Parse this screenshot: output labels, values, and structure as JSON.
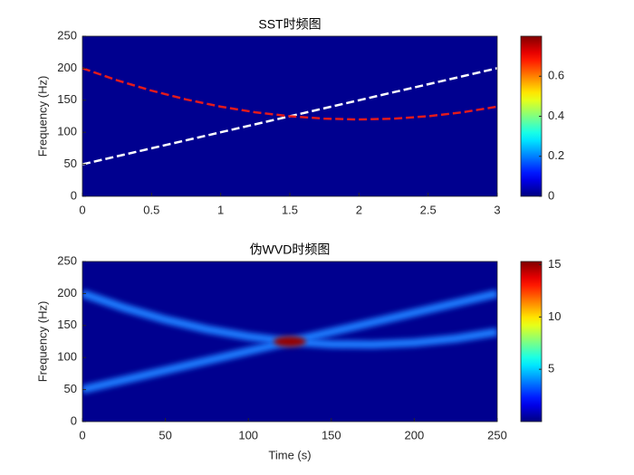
{
  "chart_data": [
    {
      "type": "ridge",
      "title": "SST时频图",
      "ylabel": "Frequency (Hz)",
      "background": "#00008f",
      "x": [
        0,
        0.25,
        0.5,
        0.75,
        1,
        1.25,
        1.5,
        1.75,
        2,
        2.25,
        2.5,
        2.75,
        3
      ],
      "series": [
        {
          "color": "#ffffff",
          "values": [
            50,
            62.5,
            75,
            87.5,
            100,
            112.5,
            125,
            137.5,
            150,
            162.5,
            175,
            187.5,
            200
          ]
        },
        {
          "color": "#e31a1c",
          "values": [
            200,
            181.25,
            165,
            151.25,
            140,
            131.25,
            125,
            121.25,
            120,
            121.25,
            125,
            131.25,
            140
          ]
        }
      ],
      "xlim": [
        0,
        3
      ],
      "xticks": [
        0,
        0.5,
        1,
        1.5,
        2,
        2.5,
        3
      ],
      "ylim": [
        0,
        250
      ],
      "yticks": [
        0,
        50,
        100,
        150,
        200,
        250
      ],
      "clim": [
        0,
        0.8
      ],
      "cticks": [
        0,
        0.2,
        0.4,
        0.6
      ]
    },
    {
      "type": "band",
      "title": "伪WVD时频图",
      "ylabel": "Frequency (Hz)",
      "xlabel": "Time (s)",
      "background": "#00008f",
      "x": [
        0,
        25,
        50,
        75,
        100,
        125,
        150,
        175,
        200,
        225,
        250
      ],
      "series": [
        {
          "color": "#1e7bff",
          "values": [
            50,
            65,
            80,
            95,
            110,
            125,
            140,
            155,
            170,
            185,
            200
          ]
        },
        {
          "color": "#1e7bff",
          "values": [
            200,
            177.8,
            159.2,
            144.2,
            132.8,
            125,
            120.8,
            120.2,
            123.2,
            129.8,
            140
          ]
        }
      ],
      "peak": {
        "x": 125,
        "y": 125,
        "value": 15
      },
      "xlim": [
        0,
        250
      ],
      "xticks": [
        0,
        50,
        100,
        150,
        200,
        250
      ],
      "ylim": [
        0,
        250
      ],
      "yticks": [
        0,
        50,
        100,
        150,
        200,
        250
      ],
      "clim": [
        0,
        15.3
      ],
      "cticks": [
        5,
        10,
        15
      ]
    }
  ]
}
